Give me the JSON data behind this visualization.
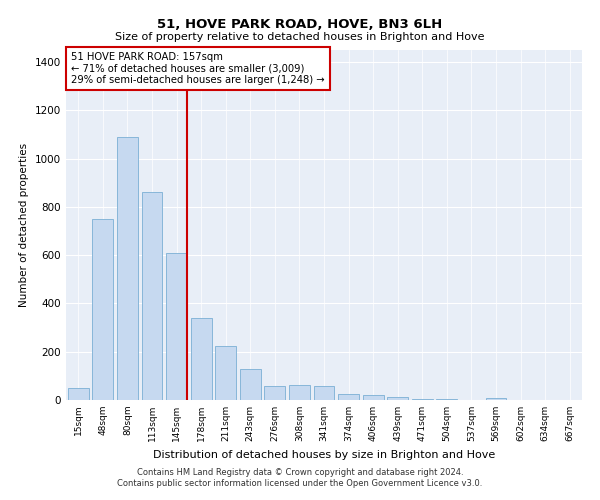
{
  "title1": "51, HOVE PARK ROAD, HOVE, BN3 6LH",
  "title2": "Size of property relative to detached houses in Brighton and Hove",
  "xlabel": "Distribution of detached houses by size in Brighton and Hove",
  "ylabel": "Number of detached properties",
  "footer1": "Contains HM Land Registry data © Crown copyright and database right 2024.",
  "footer2": "Contains public sector information licensed under the Open Government Licence v3.0.",
  "annotation_line1": "51 HOVE PARK ROAD: 157sqm",
  "annotation_line2": "← 71% of detached houses are smaller (3,009)",
  "annotation_line3": "29% of semi-detached houses are larger (1,248) →",
  "bar_labels": [
    "15sqm",
    "48sqm",
    "80sqm",
    "113sqm",
    "145sqm",
    "178sqm",
    "211sqm",
    "243sqm",
    "276sqm",
    "308sqm",
    "341sqm",
    "374sqm",
    "406sqm",
    "439sqm",
    "471sqm",
    "504sqm",
    "537sqm",
    "569sqm",
    "602sqm",
    "634sqm",
    "667sqm"
  ],
  "bar_values": [
    50,
    748,
    1090,
    860,
    610,
    340,
    225,
    130,
    58,
    62,
    60,
    25,
    20,
    12,
    6,
    3,
    0,
    10,
    0,
    2,
    0
  ],
  "bar_color": "#c6d9f0",
  "bar_edge_color": "#7bafd4",
  "vline_color": "#cc0000",
  "annotation_box_color": "#cc0000",
  "background_color": "#e8eef7",
  "ylim": [
    0,
    1450
  ],
  "yticks": [
    0,
    200,
    400,
    600,
    800,
    1000,
    1200,
    1400
  ]
}
